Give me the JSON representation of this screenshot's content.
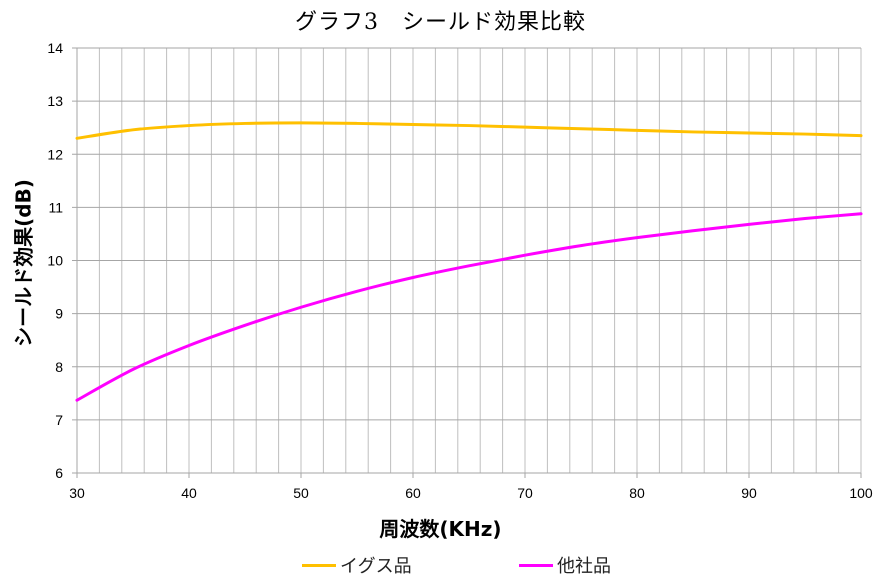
{
  "chart": {
    "title": "グラフ3　シールド効果比較",
    "xlabel": "周波数(KHz)",
    "ylabel": "シールド効果(dB)"
  },
  "legend": [
    {
      "label": "イグス品",
      "color": "#FFC000"
    },
    {
      "label": "他社品",
      "color": "#FF00FF"
    }
  ],
  "chart_data": {
    "type": "line",
    "title": "グラフ3　シールド効果比較",
    "xlabel": "周波数(KHz)",
    "ylabel": "シールド効果(dB)",
    "xlim": [
      30,
      100
    ],
    "ylim": [
      6,
      14
    ],
    "xticks": [
      30,
      40,
      50,
      60,
      70,
      80,
      90,
      100
    ],
    "yticks": [
      6,
      7,
      8,
      9,
      10,
      11,
      12,
      13,
      14
    ],
    "minor_x_grid_step": 2,
    "grid": true,
    "legend_position": "bottom",
    "x": [
      30,
      35,
      40,
      45,
      50,
      55,
      60,
      65,
      70,
      75,
      80,
      85,
      90,
      95,
      100
    ],
    "series": [
      {
        "name": "イグス品",
        "color": "#FFC000",
        "values": [
          12.3,
          12.46,
          12.54,
          12.58,
          12.59,
          12.58,
          12.56,
          12.54,
          12.51,
          12.48,
          12.45,
          12.42,
          12.4,
          12.38,
          12.35
        ]
      },
      {
        "name": "他社品",
        "color": "#FF00FF",
        "values": [
          7.37,
          7.95,
          8.4,
          8.78,
          9.12,
          9.42,
          9.68,
          9.9,
          10.1,
          10.28,
          10.43,
          10.56,
          10.68,
          10.79,
          10.88
        ]
      }
    ]
  }
}
